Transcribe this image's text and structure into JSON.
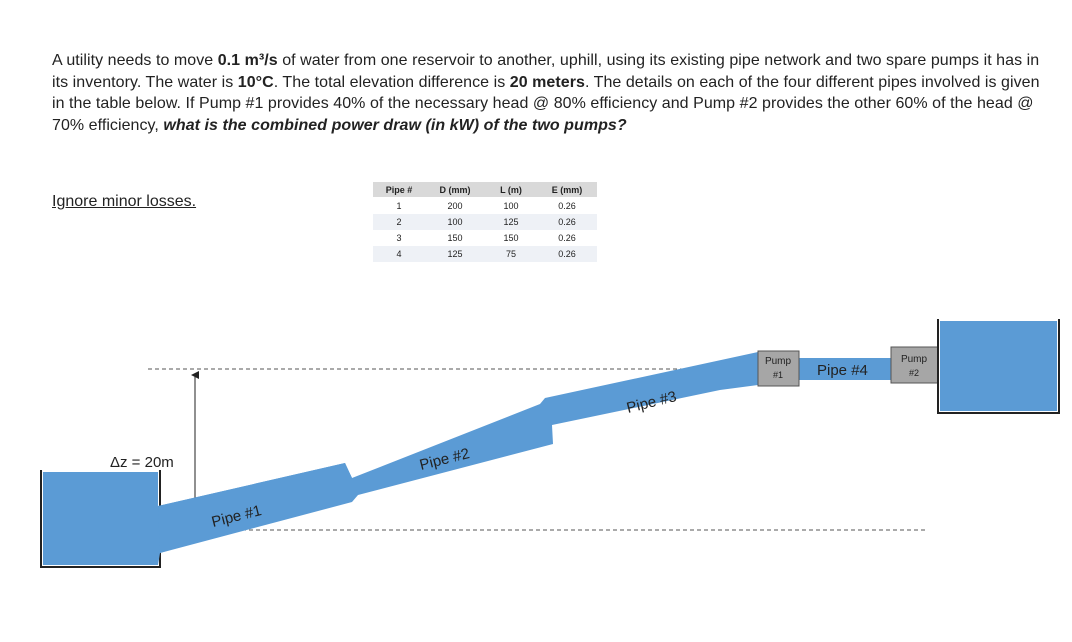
{
  "problem": {
    "s1": "A utility needs to move ",
    "flow": "0.1 m³/s",
    "s2": " of water from one reservoir to another, uphill, using its existing pipe network and two spare pumps it has in its inventory. The water is ",
    "temp": "10°C",
    "s3": ". The total elevation difference is ",
    "elev": "20 meters",
    "s4": ". The details on each of the four different pipes involved is given in the table below. If Pump #1 provides 40% of the necessary head @ 80% efficiency and Pump #2 provides the other 60% of the head @ 70% efficiency, ",
    "question": "what is the combined power draw (in kW) of the two pumps?",
    "ignore": "Ignore minor losses."
  },
  "table": {
    "headers": [
      "Pipe #",
      "D (mm)",
      "L (m)",
      "E (mm)"
    ],
    "rows": [
      [
        "1",
        "200",
        "100",
        "0.26"
      ],
      [
        "2",
        "100",
        "125",
        "0.26"
      ],
      [
        "3",
        "150",
        "150",
        "0.26"
      ],
      [
        "4",
        "125",
        "75",
        "0.26"
      ]
    ]
  },
  "diagram": {
    "dz_label": "Δz = 20m",
    "pipe1": "Pipe #1",
    "pipe2": "Pipe #2",
    "pipe3": "Pipe #3",
    "pipe4": "Pipe #4",
    "pump1_line1": "Pump",
    "pump1_line2": "#1",
    "pump2_line1": "Pump",
    "pump2_line2": "#2",
    "colors": {
      "water": "#5b9bd5",
      "pump": "#a6a6a6",
      "outline": "#222222"
    }
  }
}
